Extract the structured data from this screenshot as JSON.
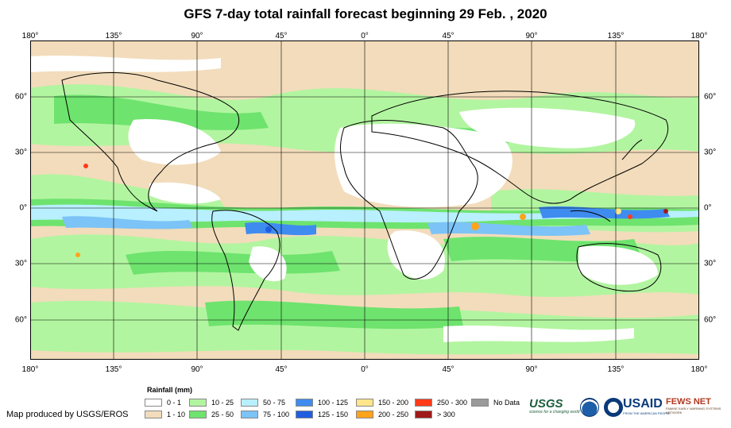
{
  "title": "GFS 7-day total rainfall forecast beginning 29 Feb. , 2020",
  "axes": {
    "longitude_labels": [
      "180°",
      "135°",
      "90°",
      "45°",
      "0°",
      "45°",
      "90°",
      "135°",
      "180°"
    ],
    "latitude_labels": [
      "60°",
      "30°",
      "0°",
      "30°",
      "60°"
    ]
  },
  "legend": {
    "title": "Rainfall (mm)",
    "items": [
      {
        "label": "0 - 1",
        "color": "#ffffff"
      },
      {
        "label": "1 - 10",
        "color": "#f2dcbb"
      },
      {
        "label": "10 - 25",
        "color": "#b2f5a0"
      },
      {
        "label": "25 - 50",
        "color": "#6ee36e"
      },
      {
        "label": "50 - 75",
        "color": "#b8f0ff"
      },
      {
        "label": "75 - 100",
        "color": "#7cc3f7"
      },
      {
        "label": "100 - 125",
        "color": "#3f8cf0"
      },
      {
        "label": "125 - 150",
        "color": "#1f5ee0"
      },
      {
        "label": "150 - 200",
        "color": "#ffe68a"
      },
      {
        "label": "200 - 250",
        "color": "#ffa31a"
      },
      {
        "label": "250 - 300",
        "color": "#ff3b1a"
      },
      {
        "label": "> 300",
        "color": "#a01a1a"
      },
      {
        "label": "No Data",
        "color": "#9a9a9a"
      }
    ]
  },
  "credit": "Map produced by USGS/EROS",
  "logos": {
    "usgs": "USGS",
    "usgs_tagline": "science for a changing world",
    "noaa": "noaa-seal-icon",
    "usaid": "USAID",
    "usaid_tagline": "FROM THE AMERICAN PEOPLE",
    "fews": "FEWS NET",
    "fews_tagline": "FAMINE EARLY WARNING SYSTEMS NETWORK"
  }
}
